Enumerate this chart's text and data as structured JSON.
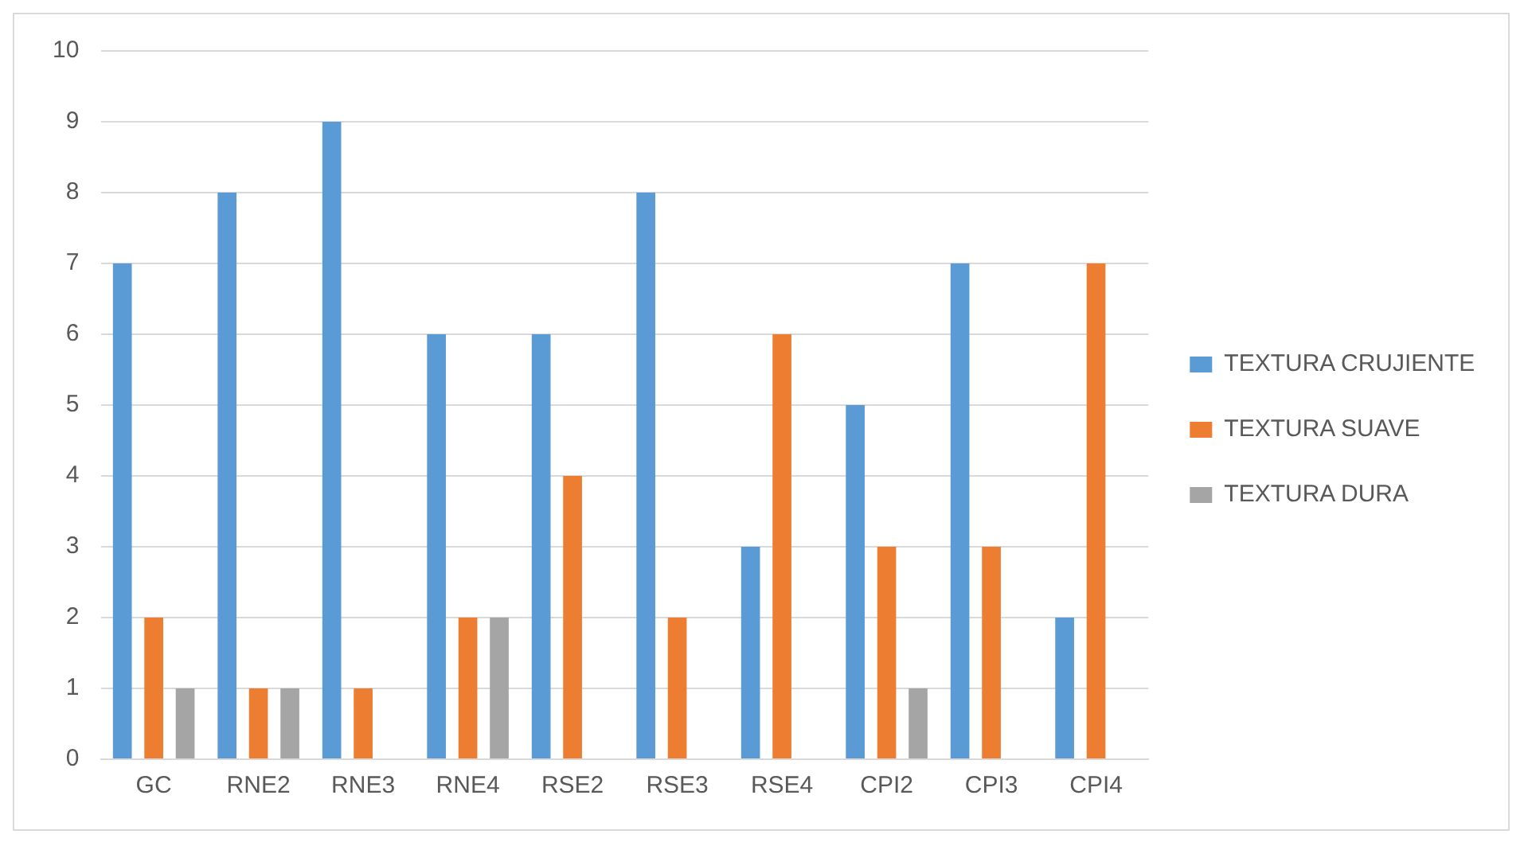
{
  "chart_data": {
    "type": "bar",
    "categories": [
      "GC",
      "RNE2",
      "RNE3",
      "RNE4",
      "RSE2",
      "RSE3",
      "RSE4",
      "CPI2",
      "CPI3",
      "CPI4"
    ],
    "series": [
      {
        "name": "TEXTURA CRUJIENTE",
        "color": "#5b9bd5",
        "values": [
          7,
          8,
          9,
          6,
          6,
          8,
          3,
          5,
          7,
          2
        ]
      },
      {
        "name": "TEXTURA SUAVE",
        "color": "#ed7d31",
        "values": [
          2,
          1,
          1,
          2,
          4,
          2,
          6,
          3,
          3,
          7
        ]
      },
      {
        "name": "TEXTURA DURA",
        "color": "#a5a5a5",
        "values": [
          1,
          1,
          0,
          2,
          0,
          0,
          0,
          1,
          0,
          0
        ]
      }
    ],
    "ylim": [
      0,
      10
    ],
    "yticks": [
      0,
      1,
      2,
      3,
      4,
      5,
      6,
      7,
      8,
      9,
      10
    ],
    "grid": "y",
    "legend": "right"
  }
}
